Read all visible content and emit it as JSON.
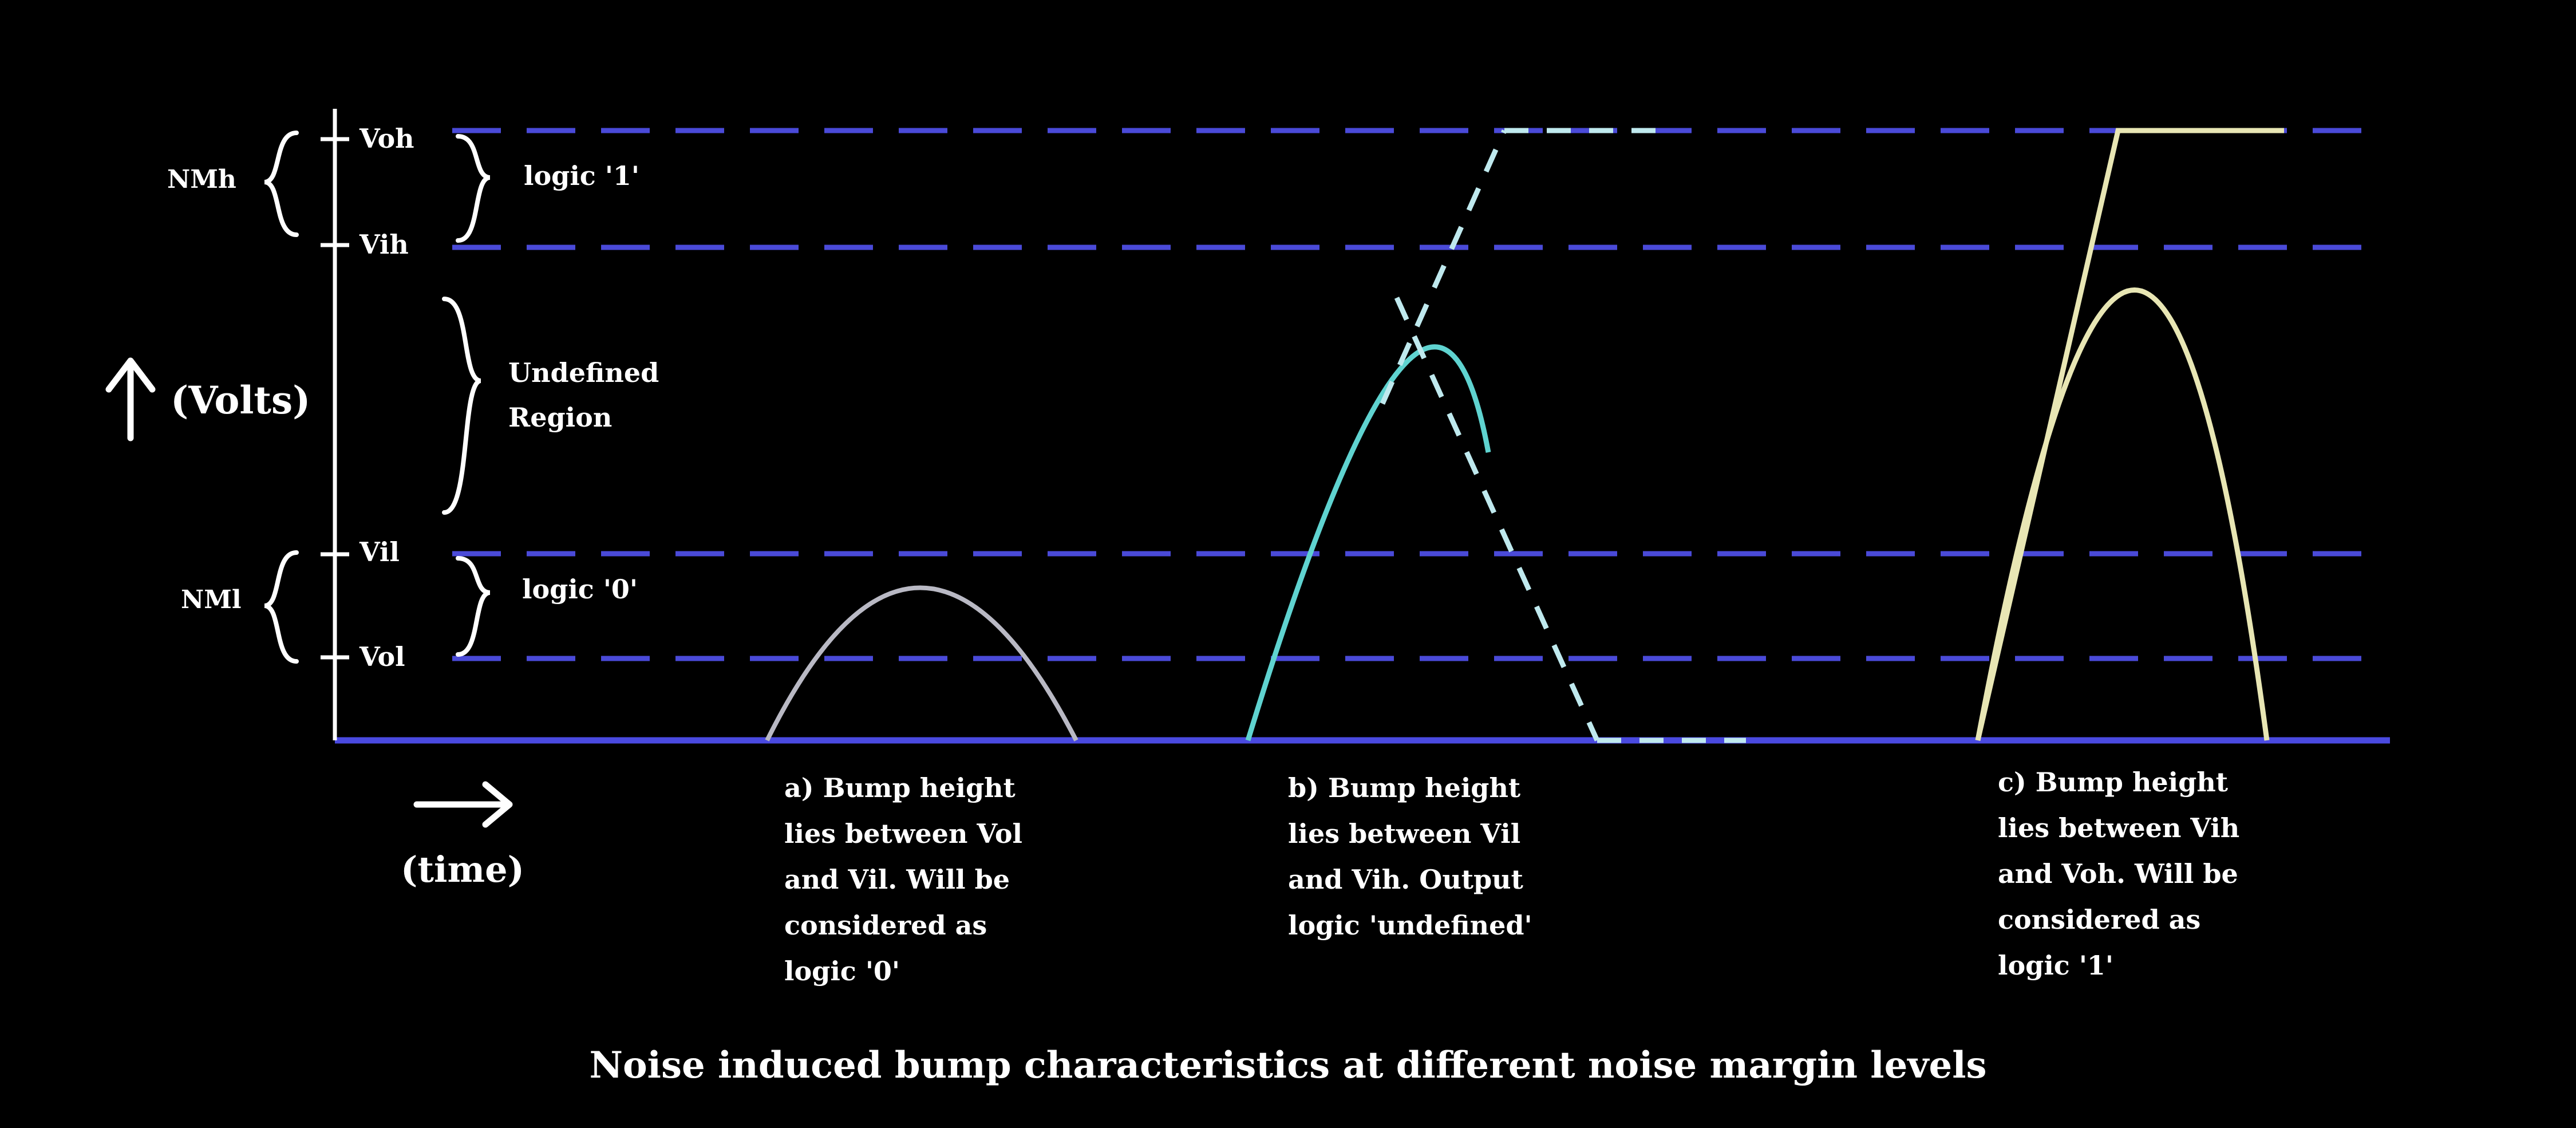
{
  "axis": {
    "y_label": "(Volts)",
    "x_label": "(time)",
    "levels": [
      {
        "key": "voh",
        "label": "Voh"
      },
      {
        "key": "vih",
        "label": "Vih"
      },
      {
        "key": "vil",
        "label": "Vil"
      },
      {
        "key": "vol",
        "label": "Vol"
      }
    ]
  },
  "margins": {
    "nmh": "NMh",
    "nml": "NMl"
  },
  "regions": {
    "logic_1": "logic '1'",
    "undefined_line1": "Undefined",
    "undefined_line2": "Region",
    "logic_0": "logic '0'"
  },
  "captions": {
    "a": [
      "a) Bump height",
      "lies between Vol",
      "and Vil. Will be",
      "considered as",
      "logic '0'"
    ],
    "b": [
      "b) Bump height",
      "lies between Vil",
      "and Vih. Output",
      "logic 'undefined'"
    ],
    "c": [
      "c) Bump height",
      "lies between Vih",
      "and Voh. Will be",
      "considered as",
      "logic '1'"
    ]
  },
  "title": "Noise induced bump characteristics at different noise margin levels",
  "colors": {
    "background": "#000000",
    "axis": "#ffffff",
    "level_line": "#4a4ad8",
    "baseline": "#4a4ae0",
    "bump_a": "#b9b9c4",
    "bump_b": "#5fd3d0",
    "bump_b_dash": "#bfe9ee",
    "bump_c": "#e8e6b4",
    "text": "#ffffff"
  }
}
